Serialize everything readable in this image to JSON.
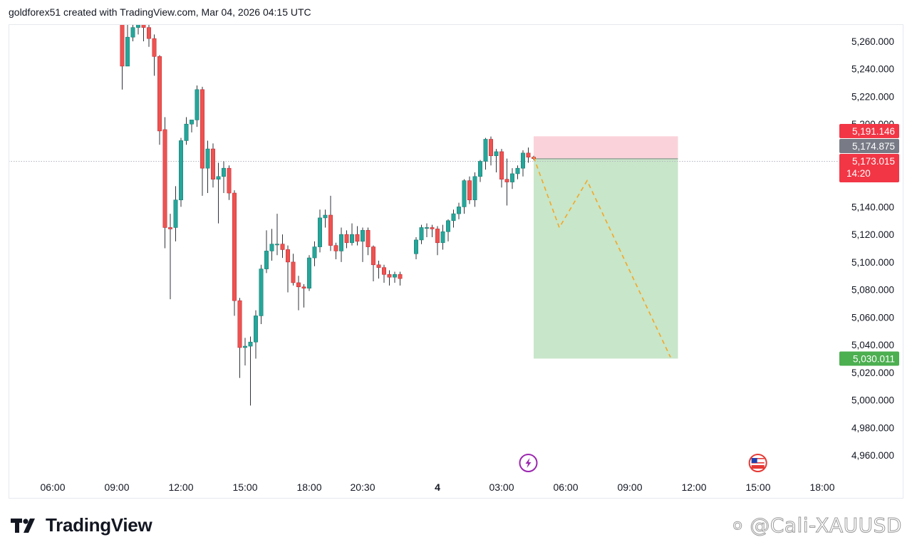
{
  "header": {
    "caption": "goldforex51 created with TradingView.com, Mar 04, 2026 04:15 UTC"
  },
  "brand": {
    "name": "TradingView",
    "logo_icon": "tradingview-logo-icon"
  },
  "watermark": {
    "text": "० @Cali-XAUUSD",
    "icon": "threads-icon"
  },
  "chart_data": {
    "type": "candlestick",
    "title": "",
    "xlabel": "",
    "ylabel": "",
    "ylim": [
      4946,
      5268
    ],
    "grid": false,
    "y_ticks": [
      "5,260.000",
      "5,240.000",
      "5,220.000",
      "5,200.000",
      "5,140.000",
      "5,120.000",
      "5,100.000",
      "5,080.000",
      "5,060.000",
      "5,040.000",
      "5,020.000",
      "5,000.000",
      "4,980.000",
      "4,960.000"
    ],
    "y_tick_values": [
      5260,
      5240,
      5220,
      5200,
      5140,
      5120,
      5100,
      5080,
      5060,
      5040,
      5020,
      5000,
      4980,
      4960
    ],
    "x_ticks": [
      {
        "label": "06:00",
        "hours": 6
      },
      {
        "label": "09:00",
        "hours": 9
      },
      {
        "label": "12:00",
        "hours": 12
      },
      {
        "label": "15:00",
        "hours": 15
      },
      {
        "label": "18:00",
        "hours": 18
      },
      {
        "label": "20:30",
        "hours": 20.5
      },
      {
        "label": "4",
        "hours": 24,
        "bold": true
      },
      {
        "label": "03:00",
        "hours": 27
      },
      {
        "label": "06:00",
        "hours": 30
      },
      {
        "label": "09:00",
        "hours": 33
      },
      {
        "label": "12:00",
        "hours": 36
      },
      {
        "label": "15:00",
        "hours": 39
      },
      {
        "label": "18:00",
        "hours": 42
      }
    ],
    "candle_interval_minutes": 15,
    "candles": [
      {
        "t": 9.25,
        "o": 5275,
        "h": 5285,
        "l": 5225,
        "c": 5242
      },
      {
        "t": 9.5,
        "o": 5242,
        "h": 5282,
        "l": 5242,
        "c": 5263
      },
      {
        "t": 9.75,
        "o": 5263,
        "h": 5280,
        "l": 5260,
        "c": 5270
      },
      {
        "t": 10.0,
        "o": 5270,
        "h": 5280,
        "l": 5265,
        "c": 5275
      },
      {
        "t": 10.25,
        "o": 5275,
        "h": 5280,
        "l": 5260,
        "c": 5270
      },
      {
        "t": 10.5,
        "o": 5270,
        "h": 5275,
        "l": 5256,
        "c": 5262
      },
      {
        "t": 10.75,
        "o": 5262,
        "h": 5265,
        "l": 5235,
        "c": 5249
      },
      {
        "t": 11.0,
        "o": 5249,
        "h": 5250,
        "l": 5185,
        "c": 5195
      },
      {
        "t": 11.25,
        "o": 5196,
        "h": 5205,
        "l": 5110,
        "c": 5125
      },
      {
        "t": 11.5,
        "o": 5125,
        "h": 5135,
        "l": 5073,
        "c": 5124
      },
      {
        "t": 11.75,
        "o": 5125,
        "h": 5155,
        "l": 5115,
        "c": 5145
      },
      {
        "t": 12.0,
        "o": 5145,
        "h": 5190,
        "l": 5140,
        "c": 5188
      },
      {
        "t": 12.25,
        "o": 5188,
        "h": 5205,
        "l": 5185,
        "c": 5200
      },
      {
        "t": 12.5,
        "o": 5200,
        "h": 5203,
        "l": 5194,
        "c": 5203
      },
      {
        "t": 12.75,
        "o": 5203,
        "h": 5228,
        "l": 5198,
        "c": 5225
      },
      {
        "t": 13.0,
        "o": 5225,
        "h": 5227,
        "l": 5148,
        "c": 5168
      },
      {
        "t": 13.25,
        "o": 5168,
        "h": 5188,
        "l": 5150,
        "c": 5182
      },
      {
        "t": 13.5,
        "o": 5182,
        "h": 5186,
        "l": 5154,
        "c": 5160
      },
      {
        "t": 13.75,
        "o": 5160,
        "h": 5172,
        "l": 5128,
        "c": 5162
      },
      {
        "t": 14.0,
        "o": 5162,
        "h": 5173,
        "l": 5150,
        "c": 5168
      },
      {
        "t": 14.25,
        "o": 5168,
        "h": 5170,
        "l": 5145,
        "c": 5150
      },
      {
        "t": 14.5,
        "o": 5150,
        "h": 5152,
        "l": 5061,
        "c": 5072
      },
      {
        "t": 14.75,
        "o": 5072,
        "h": 5074,
        "l": 5016,
        "c": 5038
      },
      {
        "t": 15.0,
        "o": 5038,
        "h": 5045,
        "l": 5025,
        "c": 5039
      },
      {
        "t": 15.25,
        "o": 5039,
        "h": 5046,
        "l": 4996,
        "c": 5042
      },
      {
        "t": 15.5,
        "o": 5042,
        "h": 5065,
        "l": 5030,
        "c": 5061
      },
      {
        "t": 15.75,
        "o": 5061,
        "h": 5098,
        "l": 5055,
        "c": 5095
      },
      {
        "t": 16.0,
        "o": 5095,
        "h": 5123,
        "l": 5092,
        "c": 5108
      },
      {
        "t": 16.25,
        "o": 5108,
        "h": 5124,
        "l": 5101,
        "c": 5113
      },
      {
        "t": 16.5,
        "o": 5113,
        "h": 5135,
        "l": 5105,
        "c": 5113
      },
      {
        "t": 16.75,
        "o": 5113,
        "h": 5120,
        "l": 5103,
        "c": 5109
      },
      {
        "t": 17.0,
        "o": 5109,
        "h": 5112,
        "l": 5078,
        "c": 5100
      },
      {
        "t": 17.25,
        "o": 5100,
        "h": 5106,
        "l": 5083,
        "c": 5085
      },
      {
        "t": 17.5,
        "o": 5085,
        "h": 5090,
        "l": 5065,
        "c": 5082
      },
      {
        "t": 17.75,
        "o": 5082,
        "h": 5084,
        "l": 5067,
        "c": 5081
      },
      {
        "t": 18.0,
        "o": 5081,
        "h": 5105,
        "l": 5079,
        "c": 5103
      },
      {
        "t": 18.25,
        "o": 5103,
        "h": 5115,
        "l": 5097,
        "c": 5111
      },
      {
        "t": 18.5,
        "o": 5111,
        "h": 5138,
        "l": 5107,
        "c": 5132
      },
      {
        "t": 18.75,
        "o": 5132,
        "h": 5138,
        "l": 5125,
        "c": 5134
      },
      {
        "t": 19.0,
        "o": 5134,
        "h": 5148,
        "l": 5108,
        "c": 5112
      },
      {
        "t": 19.25,
        "o": 5112,
        "h": 5114,
        "l": 5102,
        "c": 5108
      },
      {
        "t": 19.5,
        "o": 5108,
        "h": 5125,
        "l": 5100,
        "c": 5120
      },
      {
        "t": 19.75,
        "o": 5120,
        "h": 5123,
        "l": 5110,
        "c": 5114
      },
      {
        "t": 20.0,
        "o": 5114,
        "h": 5128,
        "l": 5112,
        "c": 5120
      },
      {
        "t": 20.25,
        "o": 5120,
        "h": 5126,
        "l": 5112,
        "c": 5115
      },
      {
        "t": 20.5,
        "o": 5115,
        "h": 5125,
        "l": 5100,
        "c": 5123
      },
      {
        "t": 20.75,
        "o": 5123,
        "h": 5125,
        "l": 5105,
        "c": 5111
      },
      {
        "t": 21.0,
        "o": 5111,
        "h": 5112,
        "l": 5086,
        "c": 5098
      },
      {
        "t": 21.25,
        "o": 5098,
        "h": 5101,
        "l": 5088,
        "c": 5096
      },
      {
        "t": 21.5,
        "o": 5096,
        "h": 5098,
        "l": 5085,
        "c": 5091
      },
      {
        "t": 21.75,
        "o": 5091,
        "h": 5094,
        "l": 5083,
        "c": 5089
      },
      {
        "t": 22.0,
        "o": 5089,
        "h": 5093,
        "l": 5085,
        "c": 5091
      },
      {
        "t": 22.25,
        "o": 5091,
        "h": 5093,
        "l": 5083,
        "c": 5088
      },
      {
        "t": 23.0,
        "o": 5106,
        "h": 5118,
        "l": 5102,
        "c": 5116
      },
      {
        "t": 23.25,
        "o": 5116,
        "h": 5127,
        "l": 5113,
        "c": 5125
      },
      {
        "t": 23.5,
        "o": 5125,
        "h": 5128,
        "l": 5118,
        "c": 5125
      },
      {
        "t": 23.75,
        "o": 5125,
        "h": 5127,
        "l": 5118,
        "c": 5124
      },
      {
        "t": 24.0,
        "o": 5124,
        "h": 5126,
        "l": 5105,
        "c": 5114
      },
      {
        "t": 24.25,
        "o": 5114,
        "h": 5127,
        "l": 5109,
        "c": 5122
      },
      {
        "t": 24.5,
        "o": 5122,
        "h": 5131,
        "l": 5115,
        "c": 5130
      },
      {
        "t": 24.75,
        "o": 5130,
        "h": 5138,
        "l": 5125,
        "c": 5135
      },
      {
        "t": 25.0,
        "o": 5135,
        "h": 5143,
        "l": 5131,
        "c": 5140
      },
      {
        "t": 25.25,
        "o": 5140,
        "h": 5160,
        "l": 5135,
        "c": 5159
      },
      {
        "t": 25.5,
        "o": 5159,
        "h": 5162,
        "l": 5142,
        "c": 5145
      },
      {
        "t": 25.75,
        "o": 5145,
        "h": 5165,
        "l": 5140,
        "c": 5162
      },
      {
        "t": 26.0,
        "o": 5162,
        "h": 5174,
        "l": 5158,
        "c": 5173
      },
      {
        "t": 26.25,
        "o": 5173,
        "h": 5190,
        "l": 5167,
        "c": 5189
      },
      {
        "t": 26.5,
        "o": 5189,
        "h": 5191,
        "l": 5170,
        "c": 5177
      },
      {
        "t": 26.75,
        "o": 5177,
        "h": 5182,
        "l": 5165,
        "c": 5180
      },
      {
        "t": 27.0,
        "o": 5180,
        "h": 5182,
        "l": 5154,
        "c": 5160
      },
      {
        "t": 27.25,
        "o": 5160,
        "h": 5175,
        "l": 5141,
        "c": 5158
      },
      {
        "t": 27.5,
        "o": 5158,
        "h": 5168,
        "l": 5153,
        "c": 5164
      },
      {
        "t": 27.75,
        "o": 5164,
        "h": 5170,
        "l": 5160,
        "c": 5168
      },
      {
        "t": 28.0,
        "o": 5168,
        "h": 5181,
        "l": 5162,
        "c": 5179
      },
      {
        "t": 28.25,
        "o": 5179,
        "h": 5183,
        "l": 5172,
        "c": 5176
      },
      {
        "t": 28.5,
        "o": 5176,
        "h": 5177,
        "l": 5174,
        "c": 5175
      }
    ],
    "colors": {
      "up": "#26a69a",
      "down": "#ef5350",
      "up_dark": "#1b7f74",
      "down_dark": "#c2303a"
    },
    "current_price": 5173.015,
    "position": {
      "type": "short",
      "stop": 5191.146,
      "entry": 5174.875,
      "target": 5030.011,
      "start_hours": 28.5,
      "end_hours": 35.25,
      "stop_fill": "#fad3da",
      "target_fill": "#c8e6c9"
    },
    "projection_path": [
      {
        "hours": 28.5,
        "price": 5176
      },
      {
        "hours": 29.7,
        "price": 5125
      },
      {
        "hours": 31.0,
        "price": 5159
      },
      {
        "hours": 34.9,
        "price": 5031
      }
    ],
    "projection_color": "#f5a623",
    "price_labels": [
      {
        "text": "5,191.146",
        "color": "#f23645",
        "price": 5191.146
      },
      {
        "text": "5,174.875",
        "color": "#787b86",
        "price": 5174.875
      },
      {
        "text": "5,173.015",
        "sub": "14:20",
        "color": "#f23645",
        "price": 5173.015
      },
      {
        "text": "5,030.011",
        "color": "#4caf50",
        "price": 5030.011
      }
    ],
    "events": [
      {
        "icon": "lightning-icon",
        "hours": 28.25,
        "color": "#9c27b0"
      },
      {
        "icon": "us-flag-icon",
        "hours": 38.99,
        "color": "#e53935"
      }
    ]
  }
}
